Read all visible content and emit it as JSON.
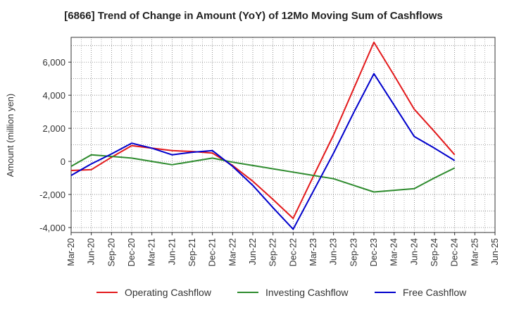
{
  "chart_data": {
    "type": "line",
    "title": "[6866]  Trend of Change in Amount (YoY) of 12Mo Moving Sum of Cashflows",
    "xlabel": "",
    "ylabel": "Amount (million yen)",
    "ylim": [
      -4300,
      7500
    ],
    "yticks": [
      -4000,
      -2000,
      0,
      2000,
      4000,
      6000
    ],
    "ytick_labels": [
      "-4,000",
      "-2,000",
      "0",
      "2,000",
      "4,000",
      "6,000"
    ],
    "categories": [
      "Mar-20",
      "Jun-20",
      "Sep-20",
      "Dec-20",
      "Mar-21",
      "Jun-21",
      "Sep-21",
      "Dec-21",
      "Mar-22",
      "Jun-22",
      "Sep-22",
      "Dec-22",
      "Mar-23",
      "Jun-23",
      "Sep-23",
      "Dec-23",
      "Mar-24",
      "Jun-24",
      "Sep-24",
      "Dec-24",
      "Mar-25",
      "Jun-25"
    ],
    "series": [
      {
        "name": "Operating Cashflow",
        "color": "#e31a1c",
        "values": [
          -550,
          -500,
          250,
          950,
          800,
          650,
          600,
          500,
          -250,
          -1200,
          -2300,
          -3450,
          -900,
          1600,
          4400,
          7200,
          5200,
          3150,
          1800,
          400,
          null,
          null
        ]
      },
      {
        "name": "Investing Cashflow",
        "color": "#2e8b2e",
        "values": [
          -300,
          400,
          300,
          200,
          0,
          -200,
          0,
          200,
          -50,
          -250,
          -450,
          -650,
          -850,
          -1050,
          -1450,
          -1850,
          -1750,
          -1650,
          -1000,
          -400,
          null,
          null
        ]
      },
      {
        "name": "Free Cashflow",
        "color": "#0000cc",
        "values": [
          -850,
          -150,
          450,
          1100,
          800,
          400,
          550,
          650,
          -300,
          -1450,
          -2800,
          -4100,
          -1800,
          500,
          2950,
          5300,
          3400,
          1500,
          800,
          50,
          null,
          null
        ]
      }
    ],
    "grid": true,
    "legend_position": "bottom-center"
  }
}
